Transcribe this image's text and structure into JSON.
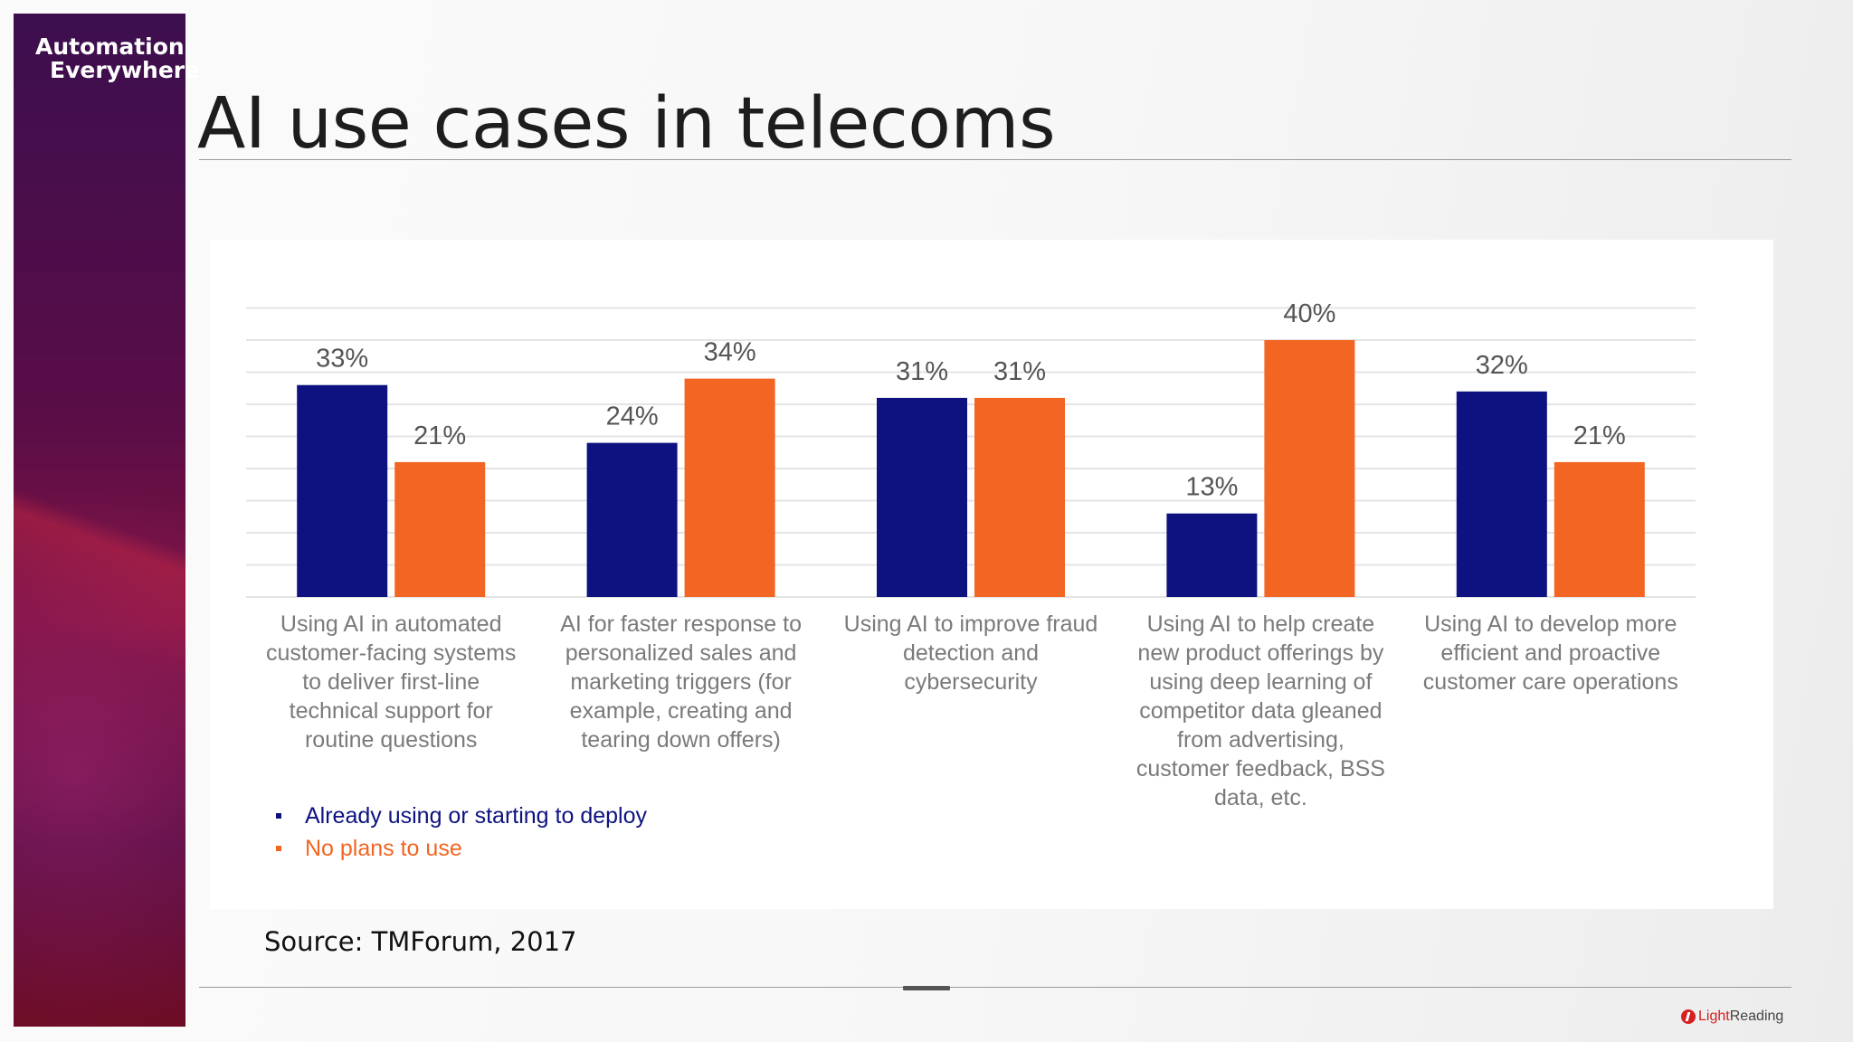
{
  "brand": {
    "line1": "Automation",
    "line2": "Everywhere"
  },
  "slide": {
    "title": "AI use cases in telecoms",
    "source": "Source: TMForum, 2017"
  },
  "footer_logo": {
    "part1": "Light",
    "part2": "Reading"
  },
  "colors": {
    "series_a": "#0d1280",
    "series_b": "#f26522",
    "accent": "#d42121"
  },
  "chart_data": {
    "type": "bar",
    "ylim": [
      0,
      45
    ],
    "grid": true,
    "legend_position": "bottom-left",
    "categories": [
      [
        "Using AI in automated",
        "customer-facing systems",
        "to deliver first-line",
        "technical support for",
        "routine questions"
      ],
      [
        "AI for faster response to",
        "personalized sales and",
        "marketing triggers (for",
        "example, creating and",
        "tearing down offers)"
      ],
      [
        "Using AI to improve fraud",
        "detection and",
        "cybersecurity"
      ],
      [
        "Using AI to help create",
        "new product offerings by",
        "using deep learning of",
        "competitor data gleaned",
        "from advertising,",
        "customer feedback, BSS",
        "data, etc."
      ],
      [
        "Using AI to develop more",
        "efficient and proactive",
        "customer care operations"
      ]
    ],
    "series": [
      {
        "name": "Already using or starting to deploy",
        "values": [
          33,
          24,
          31,
          13,
          32
        ],
        "labels": [
          "33%",
          "24%",
          "31%",
          "13%",
          "32%"
        ]
      },
      {
        "name": "No plans to use",
        "values": [
          21,
          34,
          31,
          40,
          21
        ],
        "labels": [
          "21%",
          "34%",
          "31%",
          "40%",
          "21%"
        ]
      }
    ]
  }
}
